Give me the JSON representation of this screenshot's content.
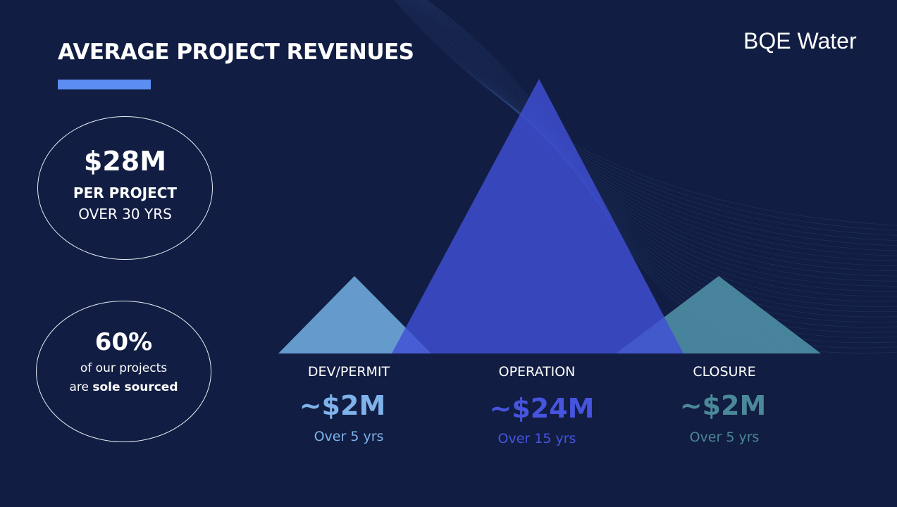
{
  "slide": {
    "title": "AVERAGE PROJECT REVENUES",
    "brand": "BQE Water",
    "accent_color": "#5b8ef0",
    "background_color": "#111d42"
  },
  "stats": {
    "total": {
      "value": "$28M",
      "line2": "PER PROJECT",
      "line3": "OVER 30 YRS"
    },
    "sole_sourced": {
      "value": "60%",
      "line2": "of our projects",
      "line3_pre": "are ",
      "line3_bold": "sole sourced"
    }
  },
  "chart_data": {
    "type": "area",
    "categories": [
      "DEV/PERMIT",
      "OPERATION",
      "CLOSURE"
    ],
    "values": [
      2,
      24,
      2
    ],
    "value_labels": [
      "~$2M",
      "~$24M",
      "~$2M"
    ],
    "durations": [
      "Over 5 yrs",
      "Over 15 yrs",
      "Over 5 yrs"
    ],
    "unit": "$M",
    "colors": [
      "#6fa8dc",
      "#3f4fd6",
      "#4f8fa6"
    ],
    "label_colors": [
      "#7fb2ea",
      "#4654de",
      "#4b8899"
    ]
  }
}
